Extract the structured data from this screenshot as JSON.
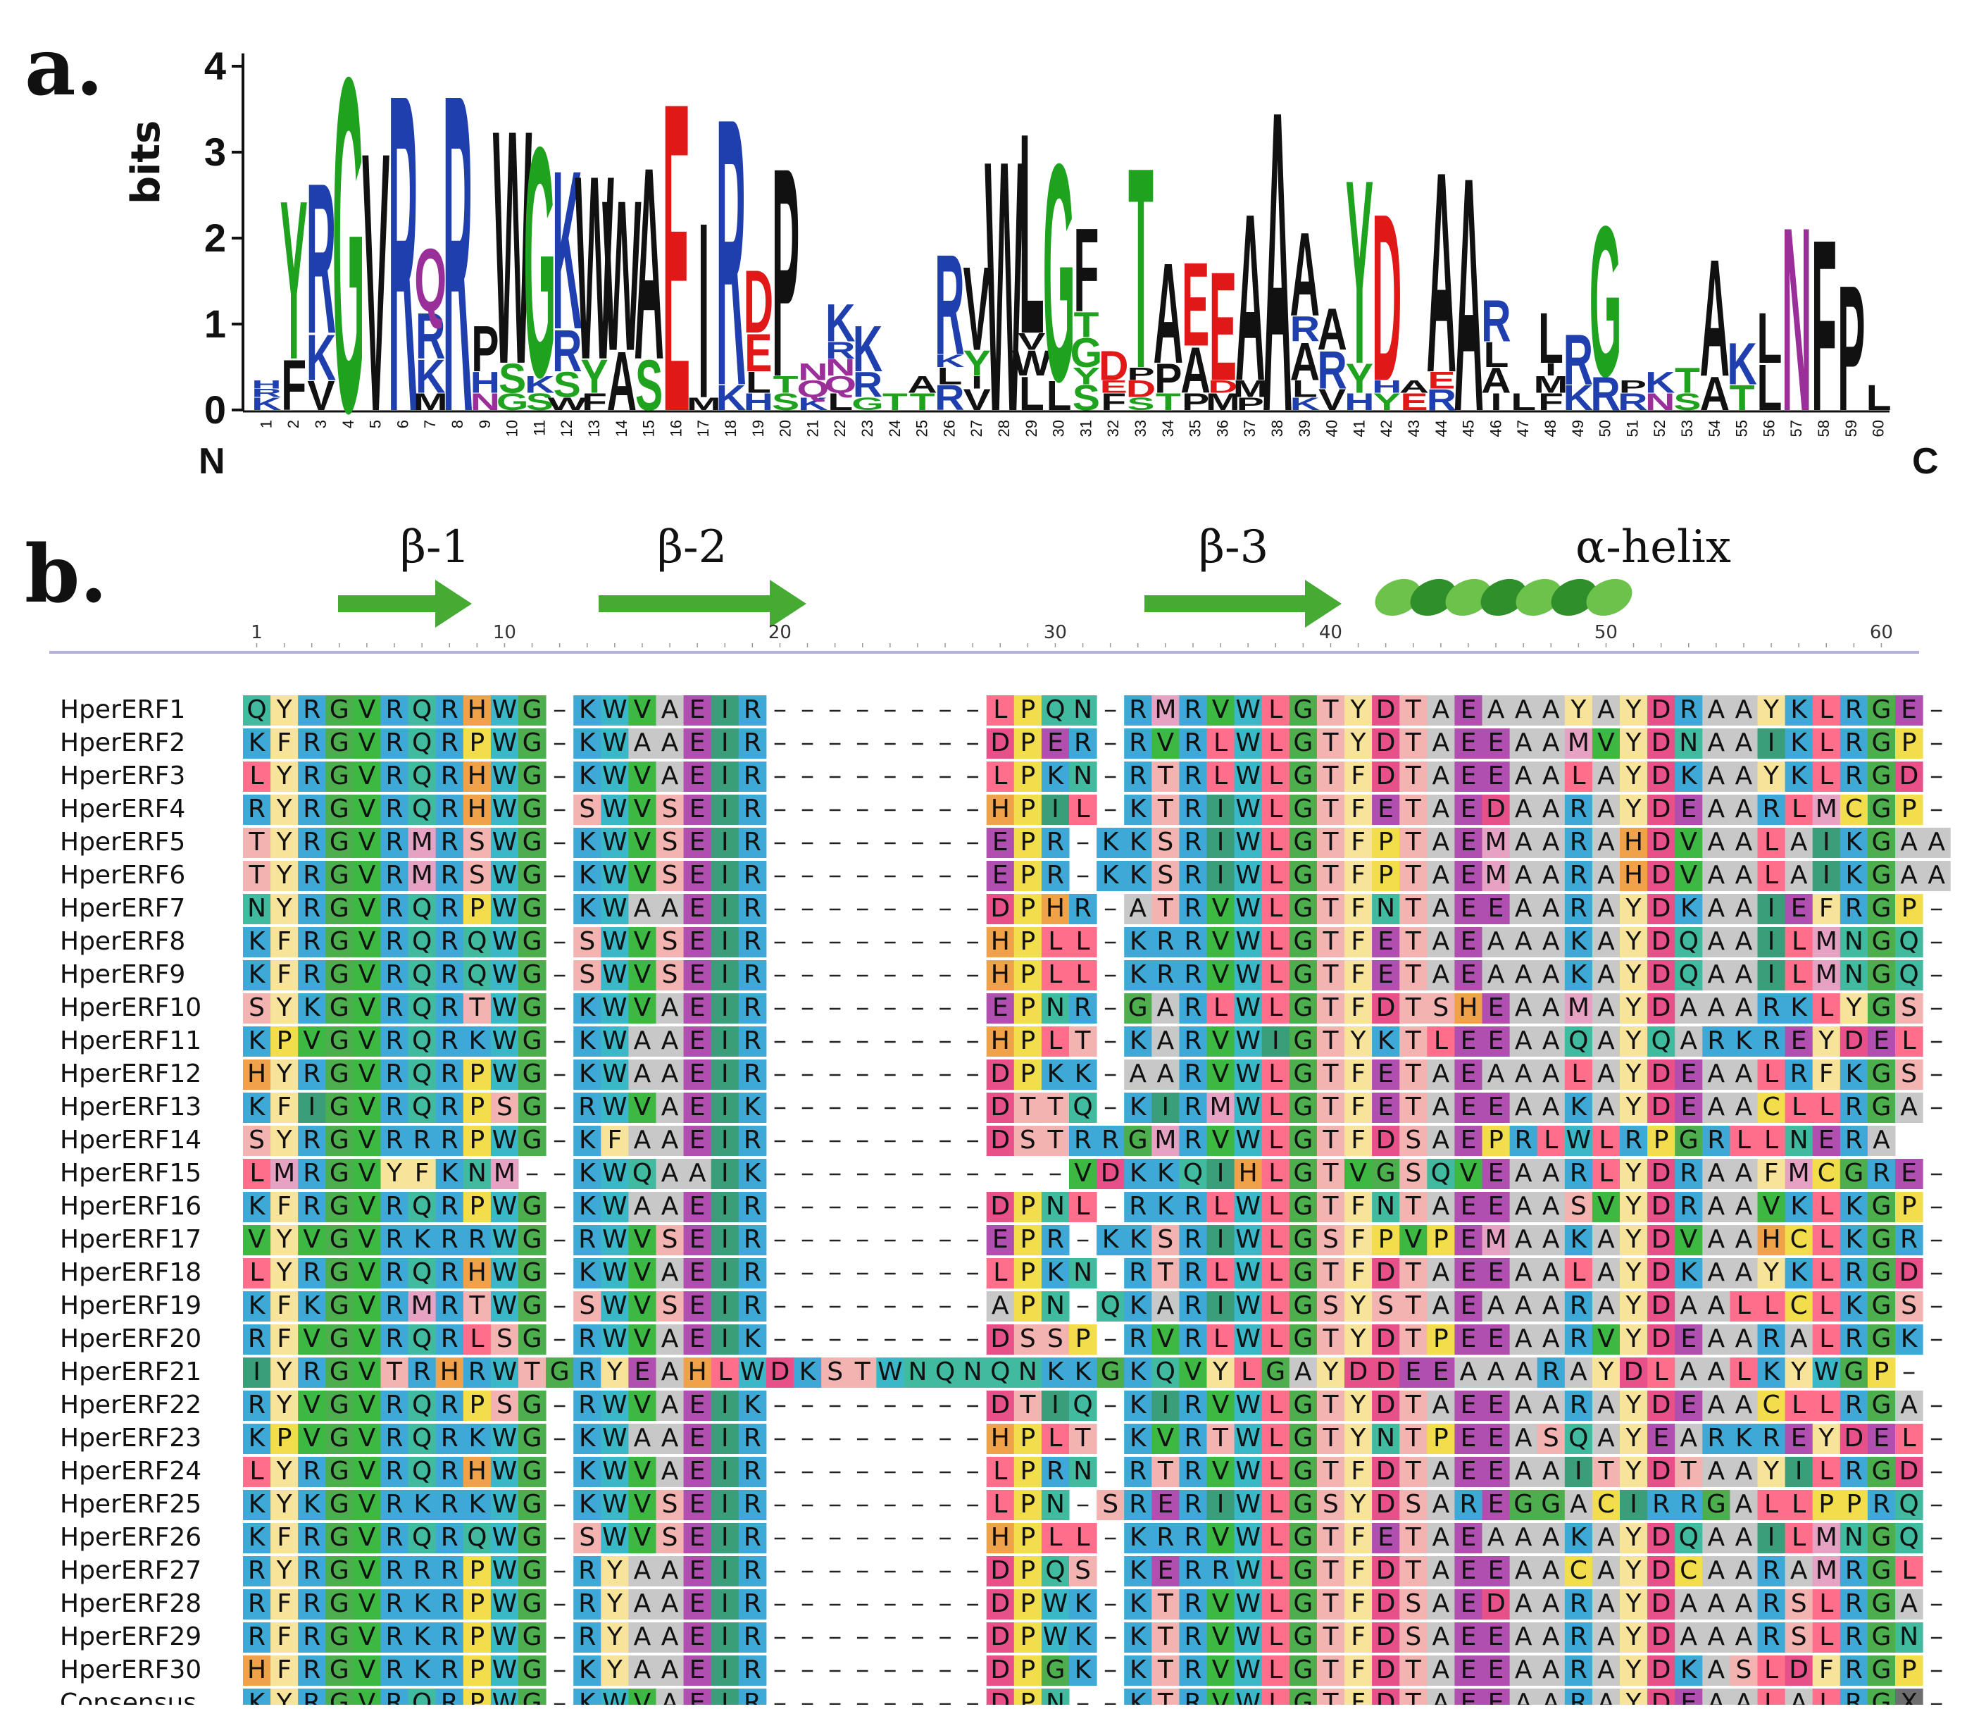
{
  "panel_a": {
    "label": "a.",
    "ylabel": "bits",
    "y_ticks": [
      "0",
      "1",
      "2",
      "3",
      "4"
    ],
    "n_term": "N",
    "c_term": "C",
    "positions": [
      "1",
      "2",
      "3",
      "4",
      "5",
      "6",
      "7",
      "8",
      "9",
      "10",
      "11",
      "12",
      "13",
      "14",
      "15",
      "16",
      "17",
      "18",
      "19",
      "20",
      "21",
      "22",
      "23",
      "24",
      "25",
      "26",
      "27",
      "28",
      "29",
      "30",
      "31",
      "32",
      "33",
      "34",
      "35",
      "36",
      "37",
      "38",
      "39",
      "40",
      "41",
      "42",
      "43",
      "44",
      "45",
      "46",
      "47",
      "48",
      "49",
      "50",
      "51",
      "52",
      "53",
      "54",
      "55",
      "56",
      "57",
      "58",
      "59",
      "60"
    ],
    "logo_stacks": [
      [
        [
          "K",
          0.15
        ],
        [
          "R",
          0.1
        ],
        [
          "H",
          0.1
        ]
      ],
      [
        [
          "F",
          0.6
        ],
        [
          "Y",
          1.9
        ]
      ],
      [
        [
          "V",
          0.35
        ],
        [
          "K",
          0.55
        ],
        [
          "R",
          1.8
        ]
      ],
      [
        [
          "G",
          4.0
        ]
      ],
      [
        [
          "V",
          3.1
        ]
      ],
      [
        [
          "R",
          3.8
        ]
      ],
      [
        [
          "M",
          0.2
        ],
        [
          "K",
          0.4
        ],
        [
          "R",
          0.55
        ],
        [
          "Q",
          0.75
        ]
      ],
      [
        [
          "R",
          3.8
        ]
      ],
      [
        [
          "N",
          0.2
        ],
        [
          "H",
          0.25
        ],
        [
          "P",
          0.55
        ]
      ],
      [
        [
          "G",
          0.2
        ],
        [
          "S",
          0.35
        ],
        [
          "W",
          2.8
        ]
      ],
      [
        [
          "S",
          0.2
        ],
        [
          "K",
          0.2
        ],
        [
          "G",
          2.75
        ]
      ],
      [
        [
          "W",
          0.15
        ],
        [
          "S",
          0.3
        ],
        [
          "R",
          0.5
        ],
        [
          "K",
          1.9
        ]
      ],
      [
        [
          "F",
          0.2
        ],
        [
          "Y",
          0.4
        ],
        [
          "W",
          2.2
        ]
      ],
      [
        [
          "A",
          0.7
        ],
        [
          "W",
          1.8
        ]
      ],
      [
        [
          "S",
          0.6
        ],
        [
          "A",
          2.3
        ]
      ],
      [
        [
          "E",
          3.7
        ]
      ],
      [
        [
          "M",
          0.15
        ],
        [
          "I",
          2.1
        ]
      ],
      [
        [
          "K",
          0.3
        ],
        [
          "R",
          3.2
        ]
      ],
      [
        [
          "H",
          0.2
        ],
        [
          "L",
          0.25
        ],
        [
          "E",
          0.45
        ],
        [
          "D",
          0.75
        ]
      ],
      [
        [
          "S",
          0.2
        ],
        [
          "T",
          0.2
        ],
        [
          "P",
          2.5
        ]
      ],
      [
        [
          "K",
          0.15
        ],
        [
          "Q",
          0.2
        ],
        [
          "N",
          0.2
        ]
      ],
      [
        [
          "L",
          0.2
        ],
        [
          "Q",
          0.2
        ],
        [
          "N",
          0.2
        ],
        [
          "R",
          0.2
        ],
        [
          "K",
          0.45
        ]
      ],
      [
        [
          "G",
          0.15
        ],
        [
          "R",
          0.3
        ],
        [
          "K",
          0.55
        ]
      ],
      [
        [
          "T",
          0.2
        ]
      ],
      [
        [
          "T",
          0.2
        ],
        [
          "A",
          0.2
        ]
      ],
      [
        [
          "R",
          0.3
        ],
        [
          "L",
          0.2
        ],
        [
          "K",
          0.15
        ],
        [
          "R",
          1.2
        ]
      ],
      [
        [
          "V",
          0.25
        ],
        [
          "I",
          0.15
        ],
        [
          "Y",
          0.3
        ],
        [
          "V",
          1.0
        ]
      ],
      [
        [
          "W",
          3.0
        ]
      ],
      [
        [
          "L",
          0.4
        ],
        [
          "W",
          0.3
        ],
        [
          "V",
          0.2
        ],
        [
          "L",
          2.4
        ]
      ],
      [
        [
          "L",
          0.35
        ],
        [
          "G",
          2.6
        ]
      ],
      [
        [
          "S",
          0.3
        ],
        [
          "Y",
          0.2
        ],
        [
          "G",
          0.35
        ],
        [
          "T",
          0.3
        ],
        [
          "F",
          1.0
        ]
      ],
      [
        [
          "F",
          0.2
        ],
        [
          "E",
          0.15
        ],
        [
          "D",
          0.35
        ]
      ],
      [
        [
          "S",
          0.15
        ],
        [
          "D",
          0.2
        ],
        [
          "P",
          0.15
        ],
        [
          "T",
          2.4
        ]
      ],
      [
        [
          "T",
          0.2
        ],
        [
          "P",
          0.35
        ],
        [
          "A",
          1.2
        ]
      ],
      [
        [
          "P",
          0.2
        ],
        [
          "A",
          0.55
        ],
        [
          "E",
          1.0
        ]
      ],
      [
        [
          "M",
          0.2
        ],
        [
          "D",
          0.15
        ],
        [
          "E",
          1.3
        ]
      ],
      [
        [
          "P",
          0.15
        ],
        [
          "M",
          0.2
        ],
        [
          "A",
          2.0
        ]
      ],
      [
        [
          "A",
          3.6
        ]
      ],
      [
        [
          "K",
          0.15
        ],
        [
          "L",
          0.2
        ],
        [
          "A",
          0.45
        ],
        [
          "R",
          0.3
        ],
        [
          "A",
          1.0
        ]
      ],
      [
        [
          "V",
          0.25
        ],
        [
          "R",
          0.45
        ],
        [
          "A",
          0.5
        ]
      ],
      [
        [
          "H",
          0.2
        ],
        [
          "Y",
          0.35
        ],
        [
          "Y",
          2.2
        ]
      ],
      [
        [
          "Y",
          0.2
        ],
        [
          "H",
          0.15
        ],
        [
          "D",
          2.0
        ]
      ],
      [
        [
          "E",
          0.2
        ],
        [
          "A",
          0.15
        ]
      ],
      [
        [
          "R",
          0.25
        ],
        [
          "E",
          0.2
        ],
        [
          "A",
          2.4
        ]
      ],
      [
        [
          "A",
          2.8
        ]
      ],
      [
        [
          "I",
          0.2
        ],
        [
          "A",
          0.3
        ],
        [
          "L",
          0.3
        ],
        [
          "R",
          0.5
        ]
      ],
      [
        [
          "L",
          0.2
        ]
      ],
      [
        [
          "F",
          0.2
        ],
        [
          "M",
          0.2
        ],
        [
          "I",
          0.15
        ],
        [
          "L",
          0.6
        ]
      ],
      [
        [
          "K",
          0.3
        ],
        [
          "R",
          0.6
        ]
      ],
      [
        [
          "R",
          0.4
        ],
        [
          "G",
          1.8
        ]
      ],
      [
        [
          "R",
          0.2
        ],
        [
          "P",
          0.15
        ]
      ],
      [
        [
          "N",
          0.2
        ],
        [
          "K",
          0.25
        ]
      ],
      [
        [
          "S",
          0.2
        ],
        [
          "T",
          0.3
        ]
      ],
      [
        [
          "A",
          0.4
        ],
        [
          "A",
          1.4
        ]
      ],
      [
        [
          "T",
          0.3
        ],
        [
          "K",
          0.5
        ]
      ],
      [
        [
          "L",
          0.55
        ],
        [
          "L",
          0.6
        ]
      ],
      [
        [
          "N",
          2.2
        ]
      ],
      [
        [
          "F",
          2.05
        ]
      ],
      [
        [
          "P",
          1.5
        ]
      ],
      [
        [
          "L",
          0.3
        ]
      ]
    ]
  },
  "panel_b": {
    "label": "b.",
    "structure": [
      {
        "label": "β-1"
      },
      {
        "label": "β-2"
      },
      {
        "label": "β-3"
      },
      {
        "label": "α-helix"
      }
    ],
    "ruler_ticks": [
      "1",
      "10",
      "20",
      "30",
      "40",
      "50",
      "60"
    ],
    "alignment": [
      {
        "name": "HperERF1",
        "seq": "QYRGVRQRHWG-KWVAEIR--------LPQN-RMRVWLGTYDTAEAAAYAYDRAAYKLRGE-"
      },
      {
        "name": "HperERF2",
        "seq": "KFRGVRQRPWG-KWAAEIR--------DPER-RVRLWLGTYDTAEEAAMVYDNAAIKLRGP-"
      },
      {
        "name": "HperERF3",
        "seq": "LYRGVRQRHWG-KWVAEIR--------LPKN-RTRLWLGTFDTAEEAALAYDKAAYKLRGD-"
      },
      {
        "name": "HperERF4",
        "seq": "RYRGVRQRHWG-SWVSEIR--------HPIL-KTRIWLGTFETAEDAARAYDEAARLMCGP-"
      },
      {
        "name": "HperERF5",
        "seq": "TYRGVRMRSWG-KWVSEIR--------EPR-KKSRIWLGTFPTAEMAARAHDVAALAIKGAA"
      },
      {
        "name": "HperERF6",
        "seq": "TYRGVRMRSWG-KWVSEIR--------EPR-KKSRIWLGTFPTAEMAARAHDVAALAIKGAA"
      },
      {
        "name": "HperERF7",
        "seq": "NYRGVRQRPWG-KWAAEIR--------DPHR-ATRVWLGTFNTAEEAARAYDKAAIEFRGP-"
      },
      {
        "name": "HperERF8",
        "seq": "KFRGVRQRQWG-SWVSEIR--------HPLL-KRRVWLGTFETAEAAAKAYDQAAILMNGQ-"
      },
      {
        "name": "HperERF9",
        "seq": "KFRGVRQRQWG-SWVSEIR--------HPLL-KRRVWLGTFETAEAAAKAYDQAAILMNGQ-"
      },
      {
        "name": "HperERF10",
        "seq": "SYKGVRQRTWG-KWVAEIR--------EPNR-GARLWLGTFDTSHEAAMAYDAAARKLYGS-"
      },
      {
        "name": "HperERF11",
        "seq": "KPVGVRQRKWG-KWAAEIR--------HPLT-KARVWIGTYKTLEEAAQAYQARKREYDEL-"
      },
      {
        "name": "HperERF12",
        "seq": "HYRGVRQRPWG-KWAAEIR--------DPKK-AARVWLGTFETAEAAALAYDEAALRFKGS-"
      },
      {
        "name": "HperERF13",
        "seq": "KFIGVRQRPSG-RWVAEIK--------DTTQ-KIRMWLGTFETAEEAAKAYDEAACLLRGA-"
      },
      {
        "name": "HperERF14",
        "seq": "SYRGVRRRPWG-KFAAEIR--------DSTRRGMRVWLGTFDSAEPRLWLRPGRLLNERA"
      },
      {
        "name": "HperERF15",
        "seq": "LMRGVYFKNM--KWQAAIK-----------VDKKQIHLGTVGSQVEAARLYDRAAFMCGRE-"
      },
      {
        "name": "HperERF16",
        "seq": "KFRGVRQRPWG-KWAAEIR--------DPNL-RKRLWLGTFNTAEEAASVYDRAAVKLKGP-"
      },
      {
        "name": "HperERF17",
        "seq": "VYVGVRKRRWG-RWVSEIR--------EPR-KKSRIWLGSFPVPEMAAKAYDVAAHCLKGR-"
      },
      {
        "name": "HperERF18",
        "seq": "LYRGVRQRHWG-KWVAEIR--------LPKN-RTRLWLGTFDTAEEAALAYDKAAYKLRGD-"
      },
      {
        "name": "HperERF19",
        "seq": "KFKGVRMRTWG-SWVSEIR--------APN-QKARIWLGSYSTAEAAARAYDAALLCLKGS-"
      },
      {
        "name": "HperERF20",
        "seq": "RFVGVRQRLSG-RWVAEIK--------DSSP-RVRLWLGTYDTPEEAARVYDEAARALRGK-"
      },
      {
        "name": "HperERF21",
        "seq": "IYRGVTRHRWTGRYEAHLWDKSTWNQNQNKKGKQVYLGAYDDEEAAARAYDLAALKYWGP-"
      },
      {
        "name": "HperERF22",
        "seq": "RYVGVRQRPSG-RWVAEIK--------DTIQ-KIRVWLGTYDTAEEAARAYDEAACLLRGA-"
      },
      {
        "name": "HperERF23",
        "seq": "KPVGVRQRKWG-KWAAEIR--------HPLT-KVRTWLGTYNTPEEASQAYEARKREYDEL-"
      },
      {
        "name": "HperERF24",
        "seq": "LYRGVRQRHWG-KWVAEIR--------LPRN-RTRVWLGTFDTAEEAAITYDTAAYILRGD-"
      },
      {
        "name": "HperERF25",
        "seq": "KYKGVRKRKWG-KWVSEIR--------LPN-SRERIWLGSYDSAREGGACIRRGALLPPRQ-"
      },
      {
        "name": "HperERF26",
        "seq": "KFRGVRQRQWG-SWVSEIR--------HPLL-KRRVWLGTFETAEAAAKAYDQAAILMNGQ-"
      },
      {
        "name": "HperERF27",
        "seq": "RYRGVRRRPWG-RYAAEIR--------DPQS-KERRWLGTFDTAEEAACAYDCAARAMRGL-"
      },
      {
        "name": "HperERF28",
        "seq": "RFRGVRKRPWG-RYAAEIR--------DPWK-KTRVWLGTFDSAEDAARAYDAAARSLRGA-"
      },
      {
        "name": "HperERF29",
        "seq": "RFRGVRKRPWG-RYAAEIR--------DPWK-KTRVWLGTFDSAEEAARAYDAAARSLRGN-"
      },
      {
        "name": "HperERF30",
        "seq": "HFRGVRKRPWG-KYAAEIR--------DPGK-KTRVWLGTFDTAEEAARAYDKASLDFRGP-"
      },
      {
        "name": "Consensus",
        "seq": "KYRGVRQRPWG-KWVAEIR--------DPN--KTRVWLGTFDTAEEAARAYDEAALALRGX-"
      }
    ],
    "colors": {
      "A": "#c8c8c8",
      "R": "#3ea9d6",
      "K": "#3ea9d6",
      "H": "#f0a24a",
      "D": "#e8508a",
      "E": "#b04fb0",
      "N": "#40bba0",
      "Q": "#40bba0",
      "S": "#f2b3b1",
      "T": "#f2b3b1",
      "G": "#4cae4c",
      "P": "#f2dd4a",
      "C": "#f2dd4a",
      "V": "#3cb843",
      "I": "#3a9e7a",
      "L": "#ff6e8a",
      "M": "#e6a2c2",
      "F": "#f7e39a",
      "Y": "#f7e39a",
      "W": "#3ab8c8",
      "X": "#6e6e6e"
    },
    "logo_colors": {
      "hydrophobic": "#111111",
      "basic": "#1f3fae",
      "acidic": "#e01818",
      "polar": "#1fa31f",
      "amide": "#9a2f9a"
    }
  }
}
